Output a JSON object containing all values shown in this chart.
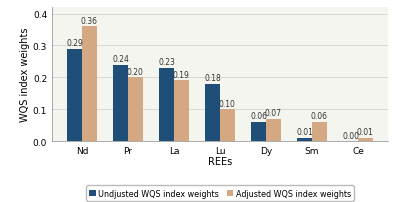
{
  "categories": [
    "Nd",
    "Pr",
    "La",
    "Lu",
    "Dy",
    "Sm",
    "Ce"
  ],
  "unadjusted": [
    0.29,
    0.24,
    0.23,
    0.18,
    0.06,
    0.01,
    0.0
  ],
  "adjusted": [
    0.36,
    0.2,
    0.19,
    0.1,
    0.07,
    0.06,
    0.01
  ],
  "unadjusted_color": "#1F4E79",
  "adjusted_color": "#D4A882",
  "xlabel": "REEs",
  "ylabel": "WQS index weights",
  "ylim": [
    0,
    0.42
  ],
  "yticks": [
    0.0,
    0.1,
    0.2,
    0.3,
    0.4
  ],
  "legend_unadjusted": "Undjusted WQS index weights",
  "legend_adjusted": "Adjusted WQS index weights",
  "bar_width": 0.32,
  "label_fontsize": 5.5,
  "axis_label_fontsize": 7.0,
  "tick_fontsize": 6.5,
  "legend_fontsize": 5.8,
  "bg_color": "#F5F5F0"
}
